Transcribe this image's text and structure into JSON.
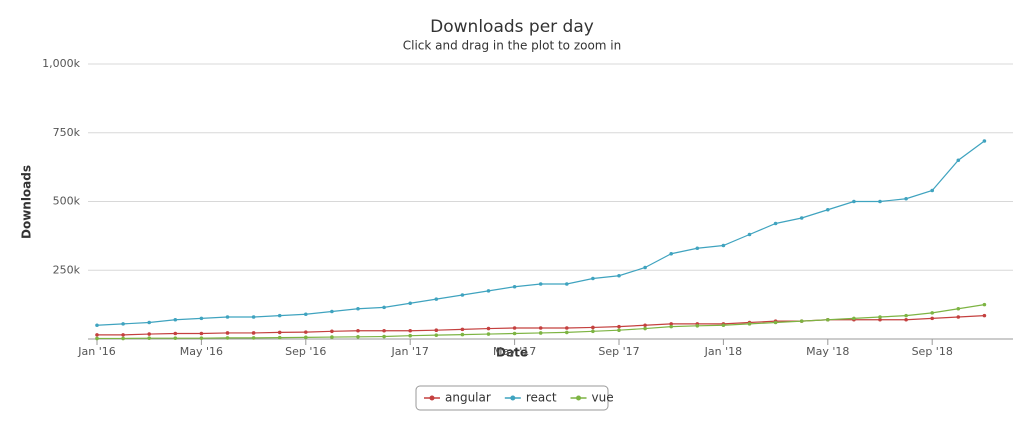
{
  "chart_data": {
    "type": "line",
    "title": "Downloads per day",
    "subtitle": "Click and drag in the plot to zoom in",
    "x_label": "Date",
    "y_label": "Downloads",
    "categories": [
      "Jan '16",
      null,
      null,
      null,
      "May '16",
      null,
      null,
      null,
      "Sep '16",
      null,
      null,
      null,
      "Jan '17",
      null,
      null,
      null,
      "May '17",
      null,
      null,
      null,
      "Sep '17",
      null,
      null,
      null,
      "Jan '18",
      null,
      null,
      null,
      "May '18",
      null,
      null,
      null,
      "Sep '18",
      null,
      null
    ],
    "series": [
      {
        "name": "angular",
        "color": "#c4403f",
        "values": [
          15000,
          15000,
          18000,
          20000,
          20000,
          22000,
          22000,
          24000,
          25000,
          28000,
          30000,
          30000,
          30000,
          32000,
          35000,
          38000,
          40000,
          40000,
          40000,
          42000,
          45000,
          50000,
          55000,
          55000,
          55000,
          60000,
          65000,
          65000,
          70000,
          70000,
          70000,
          70000,
          75000,
          80000,
          85000
        ]
      },
      {
        "name": "react",
        "color": "#3fa3bf",
        "values": [
          50000,
          55000,
          60000,
          70000,
          75000,
          80000,
          80000,
          85000,
          90000,
          100000,
          110000,
          115000,
          130000,
          145000,
          160000,
          175000,
          190000,
          200000,
          200000,
          220000,
          230000,
          260000,
          310000,
          330000,
          340000,
          380000,
          420000,
          440000,
          470000,
          500000,
          500000,
          510000,
          540000,
          650000,
          720000
        ]
      },
      {
        "name": "vue",
        "color": "#7db443",
        "values": [
          2000,
          2000,
          3000,
          3000,
          3000,
          4000,
          4000,
          5000,
          6000,
          7000,
          8000,
          9000,
          12000,
          14000,
          16000,
          18000,
          20000,
          22000,
          24000,
          28000,
          32000,
          38000,
          45000,
          48000,
          50000,
          55000,
          60000,
          65000,
          70000,
          75000,
          80000,
          85000,
          95000,
          110000,
          125000
        ]
      }
    ],
    "ylim": [
      0,
      1000000
    ],
    "yticks": [
      {
        "value": 250000,
        "label": "250k"
      },
      {
        "value": 500000,
        "label": "500k"
      },
      {
        "value": 750000,
        "label": "750k"
      },
      {
        "value": 1000000,
        "label": "1,000k"
      }
    ],
    "grid": true,
    "legend": "bottom"
  }
}
